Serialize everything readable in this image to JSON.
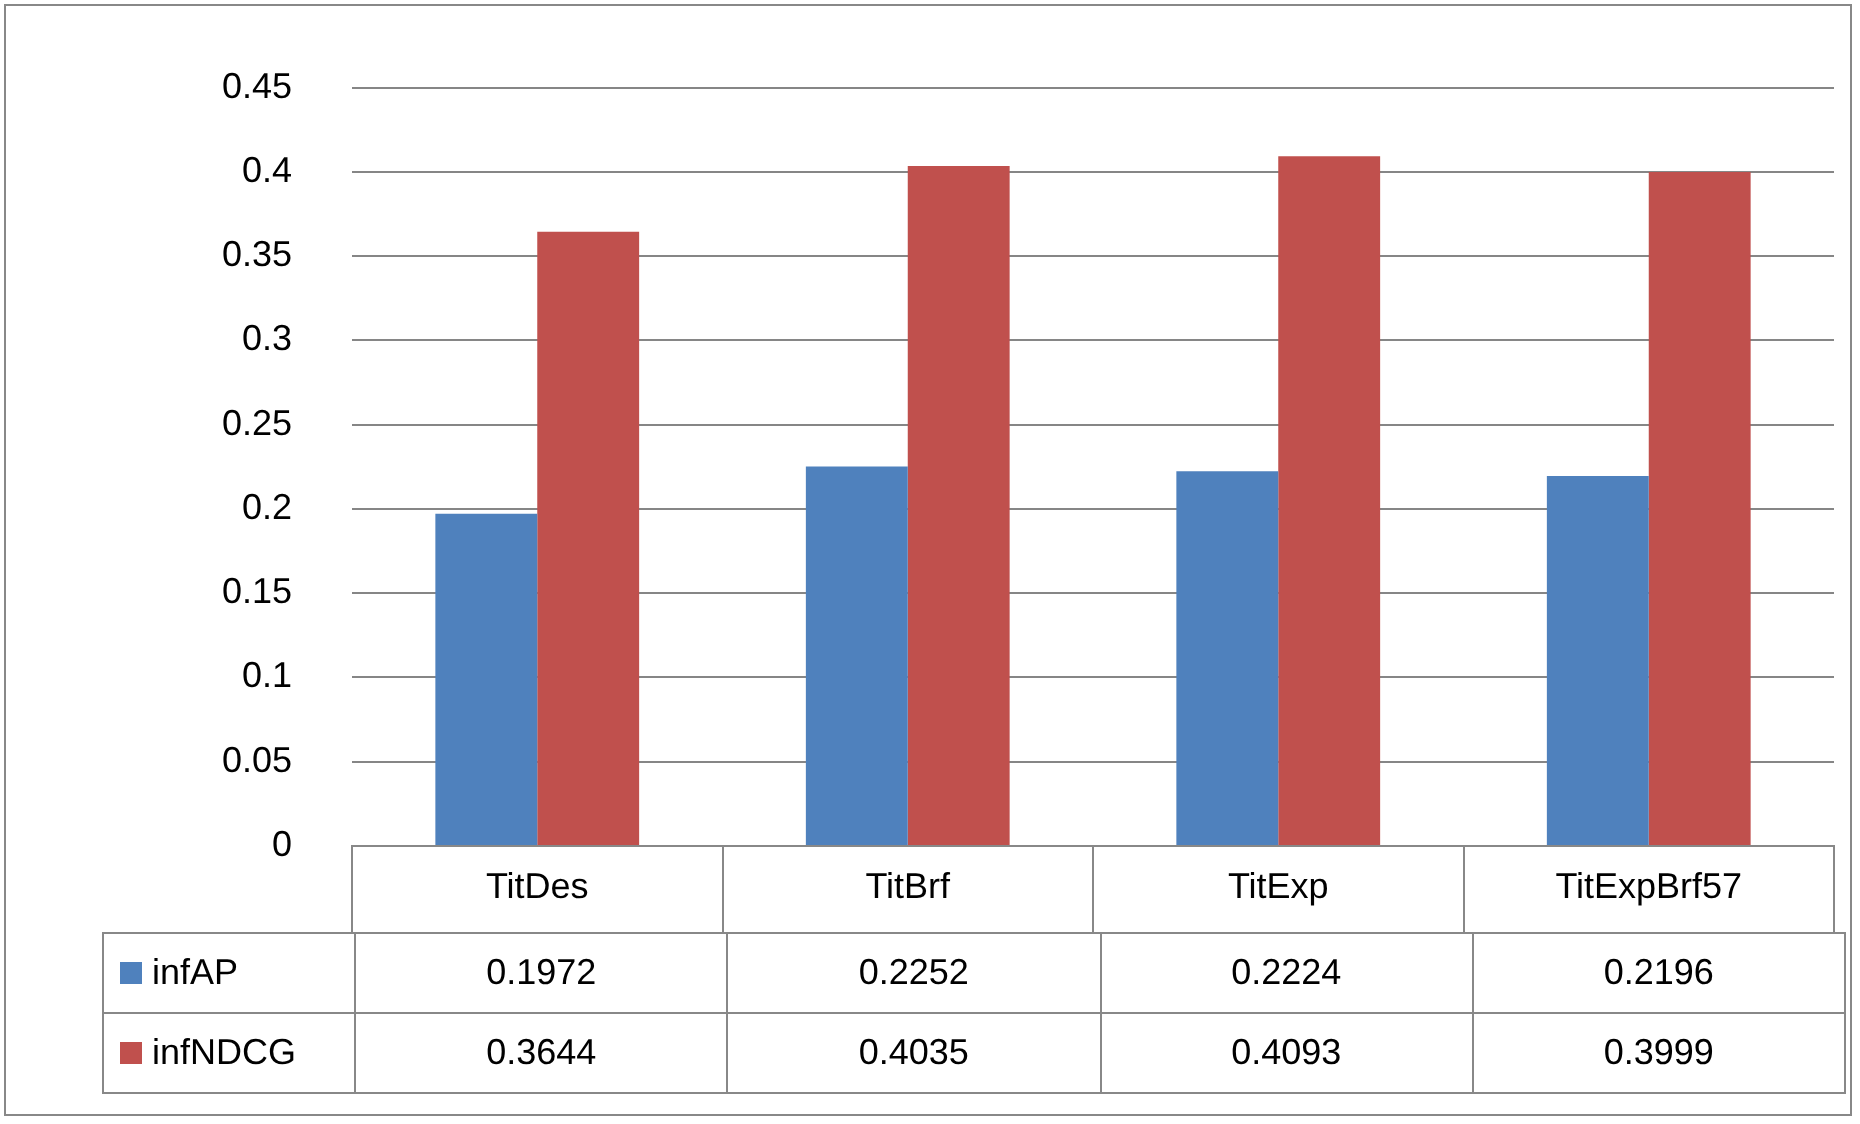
{
  "chart_data": {
    "type": "bar",
    "categories": [
      "TitDes",
      "TitBrf",
      "TitExp",
      "TitExpBrf57"
    ],
    "series": [
      {
        "name": "infAP",
        "color": "#4f81bd",
        "values": [
          0.1972,
          0.2252,
          0.2224,
          0.2196
        ]
      },
      {
        "name": "infNDCG",
        "color": "#c0504d",
        "values": [
          0.3644,
          0.4035,
          0.4093,
          0.3999
        ]
      }
    ],
    "ylim": [
      0,
      0.45
    ],
    "yticks": [
      0,
      0.05,
      0.1,
      0.15,
      0.2,
      0.25,
      0.3,
      0.35,
      0.4,
      0.45
    ],
    "grid": "y",
    "legend": "bottom",
    "data_labels": true
  }
}
